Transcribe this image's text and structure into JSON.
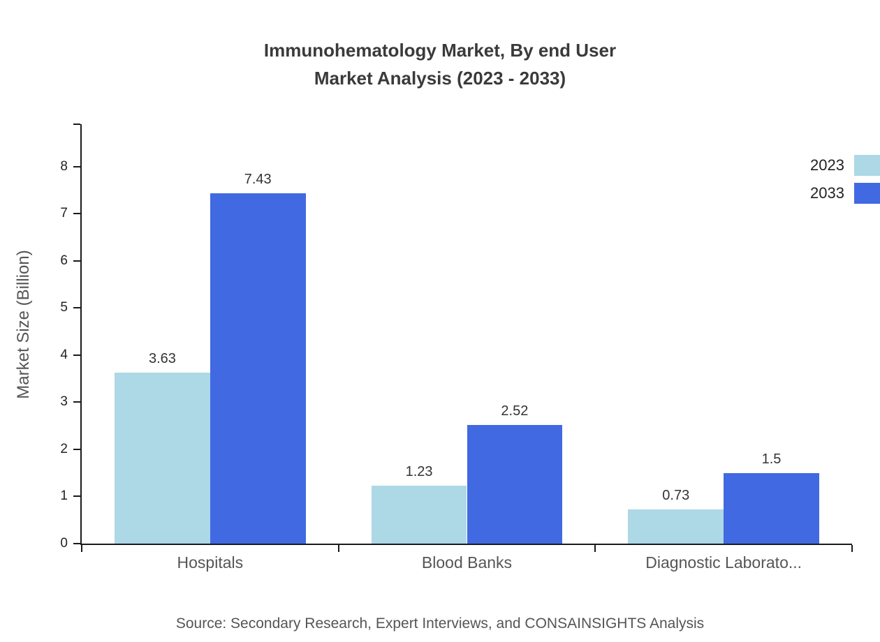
{
  "title": {
    "line1": "Immunohematology Market, By end User",
    "line2": "Market Analysis (2023 - 2033)"
  },
  "source": "Source: Secondary Research, Expert Interviews, and CONSAINSIGHTS Analysis",
  "chart_data": {
    "type": "bar",
    "categories": [
      "Hospitals",
      "Blood Banks",
      "Diagnostic Laborato..."
    ],
    "series": [
      {
        "name": "2023",
        "color": "#ADD8E6",
        "values": [
          3.63,
          1.23,
          0.73
        ]
      },
      {
        "name": "2033",
        "color": "#4169E1",
        "values": [
          7.43,
          2.52,
          1.5
        ]
      }
    ],
    "xlabel": "",
    "ylabel": "Market Size (Billion)",
    "ylim": [
      0,
      8.9
    ],
    "yticks": [
      0,
      1,
      2,
      3,
      4,
      5,
      6,
      7,
      8
    ],
    "grid": false,
    "legend_position": "top-right"
  },
  "colors": {
    "axis": "#1a1a1a",
    "title_text": "#3a3a3a",
    "muted_text": "#555555",
    "value_text": "#333333"
  }
}
